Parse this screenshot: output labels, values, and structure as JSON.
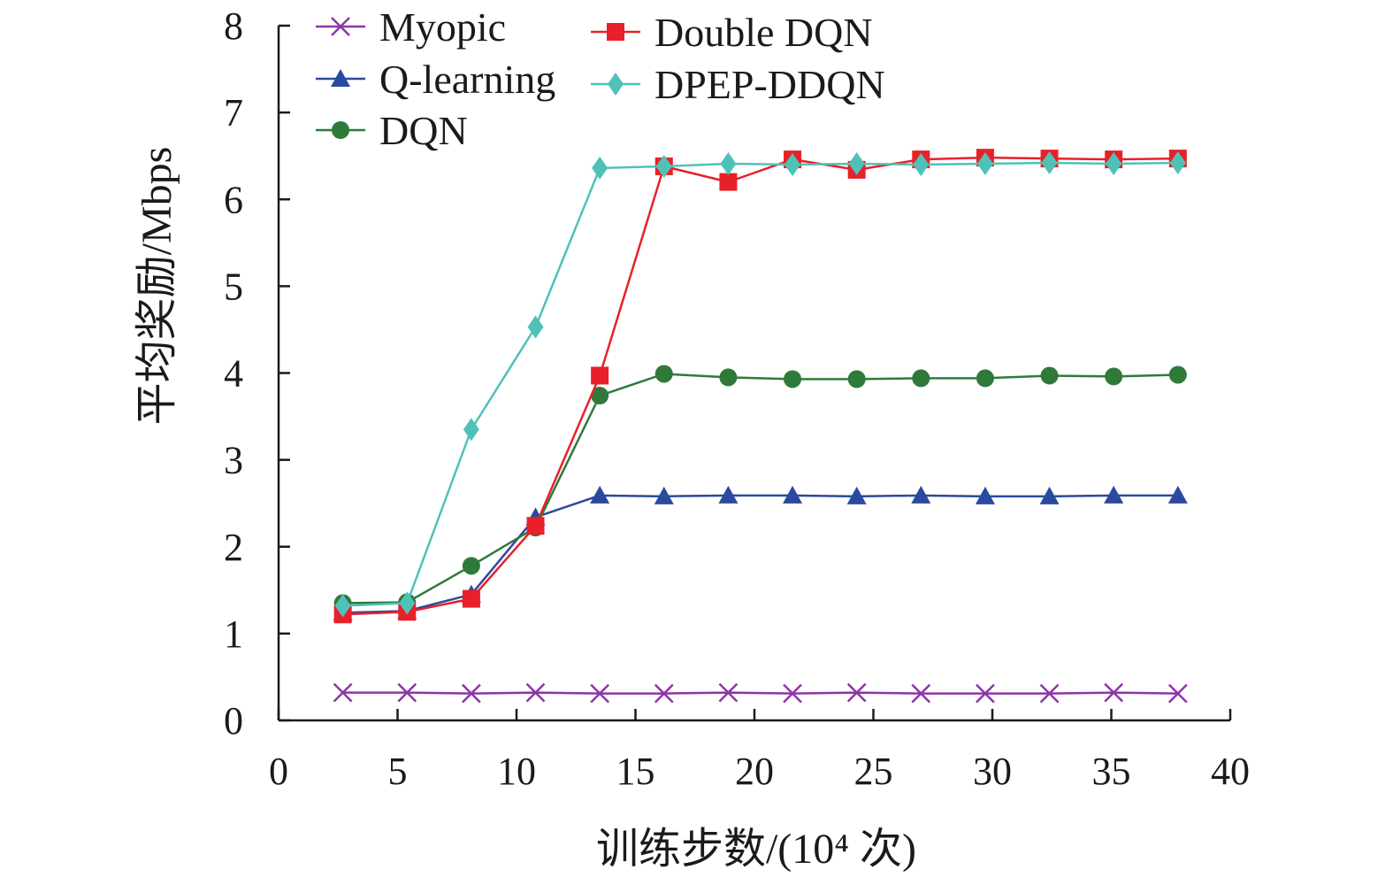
{
  "chart_data": {
    "type": "line",
    "title": "",
    "xlabel": "训练步数/(10⁴ 次)",
    "ylabel": "平均奖励/Mbps",
    "xlim": [
      0,
      40
    ],
    "ylim": [
      0,
      8
    ],
    "xticks": [
      0,
      5,
      10,
      15,
      20,
      25,
      30,
      35,
      40
    ],
    "yticks": [
      0,
      1,
      2,
      3,
      4,
      5,
      6,
      7,
      8
    ],
    "grid": false,
    "legend_position": "top-left",
    "x": [
      2.7,
      5.4,
      8.1,
      10.8,
      13.5,
      16.2,
      18.9,
      21.6,
      24.3,
      27.0,
      29.7,
      32.4,
      35.1,
      37.8
    ],
    "series": [
      {
        "name": "Myopic",
        "marker": "x",
        "color": "#8e35a8",
        "values": [
          0.32,
          0.32,
          0.31,
          0.32,
          0.31,
          0.31,
          0.32,
          0.31,
          0.32,
          0.31,
          0.31,
          0.31,
          0.32,
          0.31
        ]
      },
      {
        "name": "Q-learning",
        "marker": "triangle",
        "color": "#2b4a9e",
        "values": [
          1.24,
          1.26,
          1.45,
          2.34,
          2.59,
          2.58,
          2.59,
          2.59,
          2.58,
          2.59,
          2.58,
          2.58,
          2.59,
          2.59
        ]
      },
      {
        "name": "DQN",
        "marker": "circle",
        "color": "#2f7a3a",
        "values": [
          1.35,
          1.36,
          1.78,
          2.22,
          3.74,
          3.99,
          3.95,
          3.93,
          3.93,
          3.94,
          3.94,
          3.97,
          3.96,
          3.98
        ]
      },
      {
        "name": "Double DQN",
        "marker": "square",
        "color": "#e8202a",
        "values": [
          1.22,
          1.25,
          1.4,
          2.24,
          3.97,
          6.38,
          6.2,
          6.46,
          6.34,
          6.46,
          6.48,
          6.47,
          6.46,
          6.47
        ]
      },
      {
        "name": "DPEP-DDQN",
        "marker": "diamond",
        "color": "#4fc2b8",
        "values": [
          1.32,
          1.35,
          3.35,
          4.53,
          6.36,
          6.38,
          6.41,
          6.4,
          6.41,
          6.4,
          6.41,
          6.42,
          6.41,
          6.42
        ]
      }
    ]
  }
}
